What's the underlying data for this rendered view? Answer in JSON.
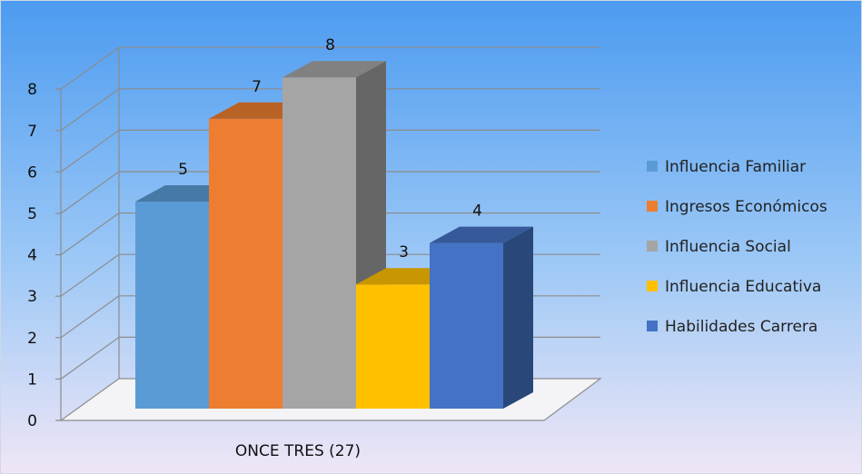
{
  "chart_data": {
    "type": "bar",
    "title": "",
    "xlabel": "",
    "ylabel": "",
    "categories": [
      "ONCE TRES (27)"
    ],
    "series": [
      {
        "name": "Influencia Familiar",
        "values": [
          5
        ],
        "color": "#5b9bd5"
      },
      {
        "name": "Ingresos Económicos",
        "values": [
          7
        ],
        "color": "#ed7d31"
      },
      {
        "name": "Influencia Social",
        "values": [
          8
        ],
        "color": "#a5a5a5"
      },
      {
        "name": "Influencia Educativa",
        "values": [
          3
        ],
        "color": "#ffc000"
      },
      {
        "name": "Habilidades Carrera",
        "values": [
          4
        ],
        "color": "#4472c4"
      }
    ],
    "ylim": [
      0,
      8
    ],
    "yticks": [
      0,
      1,
      2,
      3,
      4,
      5,
      6,
      7,
      8
    ],
    "grid": true,
    "three_d": true,
    "legend_position": "right",
    "background": {
      "top": "#4c9bf0",
      "bottom": "#efe6f6"
    }
  }
}
